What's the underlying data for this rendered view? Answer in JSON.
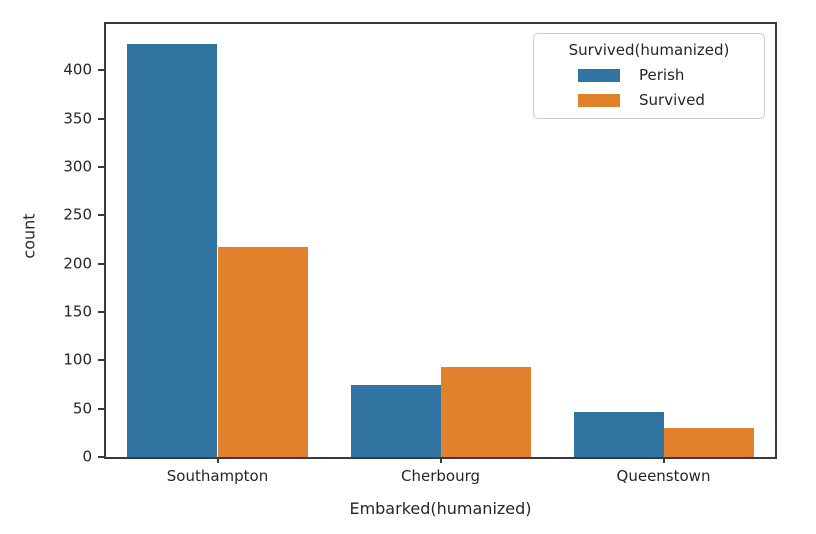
{
  "chart_data": {
    "type": "bar",
    "title": "",
    "categories": [
      "Southampton",
      "Cherbourg",
      "Queenstown"
    ],
    "series": [
      {
        "name": "Perish",
        "color": "#3274a1",
        "values": [
          427,
          75,
          47
        ]
      },
      {
        "name": "Survived",
        "color": "#e1812c",
        "values": [
          217,
          93,
          30
        ]
      }
    ],
    "xlabel": "Embarked(humanized)",
    "ylabel": "count",
    "yticks": [
      0,
      50,
      100,
      150,
      200,
      250,
      300,
      350,
      400
    ],
    "ylim": [
      0,
      448
    ],
    "grid": false,
    "legend": {
      "title": "Survived(humanized)",
      "position": "upper right",
      "entries": [
        "Perish",
        "Survived"
      ]
    },
    "colors": {
      "perish_bar": "#3274a1",
      "survived_bar": "#e1812c",
      "spine": "#3a3a3a",
      "text": "#262626",
      "legend_border": "#cccccc",
      "background": "#ffffff"
    }
  }
}
